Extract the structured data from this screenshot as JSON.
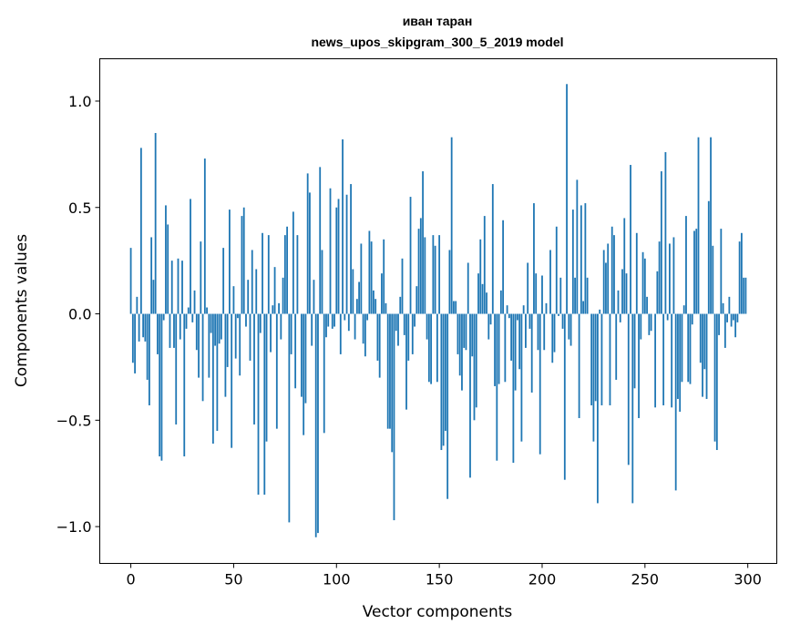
{
  "chart_data": {
    "type": "bar",
    "title": [
      "иван таран",
      "news_upos_skipgram_300_5_2019 model"
    ],
    "xlabel": "Vector components",
    "ylabel": "Components values",
    "xlim": [
      -15.1,
      314.1
    ],
    "ylim": [
      -1.173,
      1.199
    ],
    "xticks": [
      0,
      50,
      100,
      150,
      200,
      250,
      300
    ],
    "xtick_labels": [
      "0",
      "50",
      "100",
      "150",
      "200",
      "250",
      "300"
    ],
    "yticks": [
      -1.0,
      -0.5,
      0.0,
      0.5,
      1.0
    ],
    "ytick_labels": [
      "−1.0",
      "−0.5",
      "0.0",
      "0.5",
      "1.0"
    ],
    "grid": false,
    "bar_color": "#1f77b4",
    "bar_width": 0.8,
    "values": [
      0.31,
      -0.23,
      -0.28,
      0.08,
      -0.13,
      0.78,
      -0.11,
      -0.13,
      -0.31,
      -0.43,
      0.36,
      0.16,
      0.85,
      -0.19,
      -0.67,
      -0.69,
      -0.03,
      0.51,
      0.42,
      -0.16,
      0.25,
      -0.16,
      -0.52,
      0.26,
      -0.12,
      0.25,
      -0.67,
      -0.07,
      0.03,
      0.54,
      -0.04,
      0.11,
      -0.17,
      -0.3,
      0.34,
      -0.41,
      0.73,
      0.03,
      -0.3,
      -0.09,
      -0.61,
      -0.15,
      -0.55,
      -0.14,
      -0.12,
      0.31,
      -0.39,
      -0.25,
      0.49,
      -0.63,
      0.13,
      -0.21,
      -0.02,
      -0.29,
      0.46,
      0.5,
      -0.06,
      0.16,
      -0.22,
      0.3,
      -0.52,
      0.21,
      -0.85,
      -0.09,
      0.38,
      -0.85,
      -0.6,
      0.37,
      -0.18,
      0.04,
      0.22,
      -0.54,
      0.05,
      -0.12,
      0.17,
      0.37,
      0.41,
      -0.98,
      -0.19,
      0.48,
      -0.35,
      0.37,
      0.0,
      -0.39,
      -0.57,
      -0.42,
      0.66,
      0.57,
      -0.15,
      0.16,
      -1.05,
      -1.03,
      0.69,
      0.3,
      -0.56,
      -0.11,
      -0.06,
      0.59,
      -0.07,
      -0.06,
      0.5,
      0.54,
      -0.19,
      0.82,
      -0.03,
      0.56,
      -0.08,
      0.61,
      0.21,
      -0.12,
      0.07,
      0.15,
      0.33,
      -0.14,
      -0.2,
      -0.03,
      0.39,
      0.34,
      0.11,
      0.07,
      -0.22,
      -0.3,
      0.19,
      0.35,
      0.05,
      -0.54,
      -0.54,
      -0.65,
      -0.97,
      -0.08,
      -0.15,
      0.08,
      0.26,
      -0.1,
      -0.45,
      -0.22,
      0.55,
      -0.19,
      -0.06,
      0.13,
      0.4,
      0.45,
      0.67,
      0.36,
      -0.12,
      -0.32,
      -0.33,
      0.37,
      0.32,
      -0.32,
      0.37,
      -0.64,
      -0.62,
      -0.55,
      -0.87,
      0.3,
      0.83,
      0.06,
      0.06,
      -0.19,
      -0.29,
      -0.36,
      -0.16,
      -0.17,
      0.24,
      -0.77,
      -0.2,
      -0.5,
      -0.44,
      0.19,
      0.35,
      0.14,
      0.46,
      0.1,
      -0.12,
      -0.05,
      0.61,
      -0.34,
      -0.69,
      -0.33,
      0.11,
      0.44,
      -0.32,
      0.04,
      -0.02,
      -0.22,
      -0.7,
      -0.36,
      -0.03,
      -0.26,
      -0.6,
      0.04,
      -0.16,
      0.24,
      -0.07,
      -0.37,
      0.52,
      0.19,
      -0.17,
      -0.66,
      0.18,
      -0.17,
      0.05,
      0.0,
      0.3,
      -0.23,
      -0.18,
      0.41,
      -0.01,
      0.17,
      -0.07,
      -0.78,
      1.08,
      -0.12,
      -0.15,
      0.49,
      0.17,
      0.63,
      -0.49,
      0.51,
      0.06,
      0.52,
      0.17,
      0.0,
      -0.43,
      -0.6,
      -0.41,
      -0.89,
      0.02,
      -0.43,
      0.3,
      0.24,
      0.33,
      -0.43,
      0.41,
      0.37,
      -0.31,
      0.11,
      -0.04,
      0.21,
      0.45,
      0.19,
      -0.71,
      0.7,
      -0.89,
      -0.35,
      0.38,
      -0.49,
      -0.12,
      0.29,
      0.26,
      0.08,
      -0.1,
      -0.08,
      0.0,
      -0.44,
      0.2,
      0.34,
      0.67,
      -0.43,
      0.76,
      -0.03,
      0.33,
      -0.44,
      0.36,
      -0.83,
      -0.4,
      -0.46,
      -0.32,
      0.04,
      0.46,
      -0.32,
      -0.33,
      -0.05,
      0.39,
      0.4,
      0.83,
      -0.23,
      -0.39,
      -0.26,
      -0.4,
      0.53,
      0.83,
      0.32,
      -0.6,
      -0.64,
      -0.1,
      0.4,
      0.05,
      -0.16,
      -0.04,
      0.08,
      -0.06,
      -0.03,
      -0.11,
      -0.04,
      0.34,
      0.38,
      0.17,
      0.17
    ]
  }
}
